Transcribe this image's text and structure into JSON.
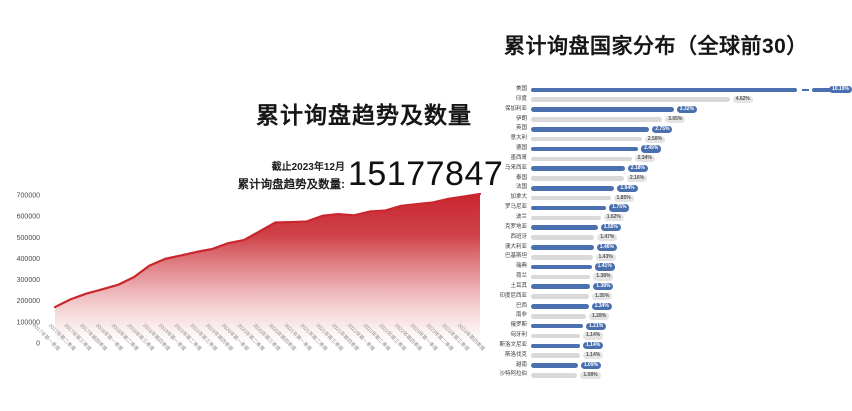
{
  "colors": {
    "red_line": "#c9262e",
    "blue_bar": "#4a70b0",
    "gray_bar": "#d9d9d9",
    "badge_gray_bg": "#e4e4e4",
    "badge_gray_text": "#565656"
  },
  "chart_data": [
    {
      "type": "area",
      "title": "累计询盘趋势及数量",
      "annotation": {
        "caption": "截止2023年12月",
        "label": "累计询盘趋势及数量:",
        "value": "15177847"
      },
      "x": [
        "2017年第一季度",
        "2017年第二季度",
        "2017年第三季度",
        "2017年第四季度",
        "2018年第一季度",
        "2018年第二季度",
        "2018年第三季度",
        "2018年第四季度",
        "2019年第一季度",
        "2019年第二季度",
        "2019年第三季度",
        "2019年第四季度",
        "2020年第一季度",
        "2020年第二季度",
        "2020年第三季度",
        "2020年第四季度",
        "2021年第一季度",
        "2021年第二季度",
        "2021年第三季度",
        "2021年第四季度",
        "2022年第一季度",
        "2022年第二季度",
        "2022年第三季度",
        "2022年第四季度",
        "2023年第一季度",
        "2023年第二季度",
        "2023年第三季度",
        "2023年第四季度"
      ],
      "values": [
        170000,
        207000,
        234000,
        254000,
        275000,
        311000,
        366000,
        398000,
        414000,
        431000,
        445000,
        472000,
        487000,
        528000,
        570000,
        572000,
        575000,
        602000,
        610000,
        604000,
        622000,
        627000,
        649000,
        657000,
        665000,
        682000,
        693000,
        705000
      ],
      "y_ticks": [
        0,
        100000,
        200000,
        300000,
        400000,
        500000,
        600000,
        700000
      ],
      "ylim": [
        0,
        720000
      ],
      "grid": false,
      "legend": false,
      "line_color": "#c9262e"
    },
    {
      "type": "bar",
      "orientation": "horizontal",
      "title": "累计询盘国家分布（全球前30）",
      "categories": [
        "美国",
        "印度",
        "保加利亚",
        "伊朗",
        "英国",
        "意大利",
        "德国",
        "墨西哥",
        "马来西亚",
        "泰国",
        "法国",
        "加拿大",
        "罗马尼亚",
        "波兰",
        "克罗地亚",
        "西班牙",
        "澳大利亚",
        "巴基斯坦",
        "瑞典",
        "荷兰",
        "土耳其",
        "印度尼西亚",
        "巴西",
        "南非",
        "俄罗斯",
        "匈牙利",
        "斯洛文尼亚",
        "斯洛伐克",
        "越南",
        "沙特阿拉伯"
      ],
      "values": [
        10.19,
        4.62,
        3.32,
        3.05,
        2.75,
        2.58,
        2.49,
        2.34,
        2.18,
        2.16,
        1.94,
        1.85,
        1.75,
        1.62,
        1.55,
        1.47,
        1.46,
        1.43,
        1.41,
        1.38,
        1.38,
        1.35,
        1.34,
        1.28,
        1.21,
        1.14,
        1.14,
        1.14,
        1.09,
        1.08
      ],
      "value_labels": [
        "10.19%",
        "4.62%",
        "3.32%",
        "3.05%",
        "2.75%",
        "2.58%",
        "2.49%",
        "2.34%",
        "2.18%",
        "2.16%",
        "1.94%",
        "1.85%",
        "1.75%",
        "1.62%",
        "1.55%",
        "1.47%",
        "1.46%",
        "1.43%",
        "1.41%",
        "1.38%",
        "1.38%",
        "1.35%",
        "1.34%",
        "1.28%",
        "1.21%",
        "1.14%",
        "1.14%",
        "1.14%",
        "1.09%",
        "1.08%"
      ],
      "unit": "%",
      "alternating_colors": true,
      "colors": {
        "blue": "#4a70b0",
        "gray": "#d9d9d9"
      },
      "axis_break_first_bar": true,
      "legend_position": "none"
    }
  ]
}
